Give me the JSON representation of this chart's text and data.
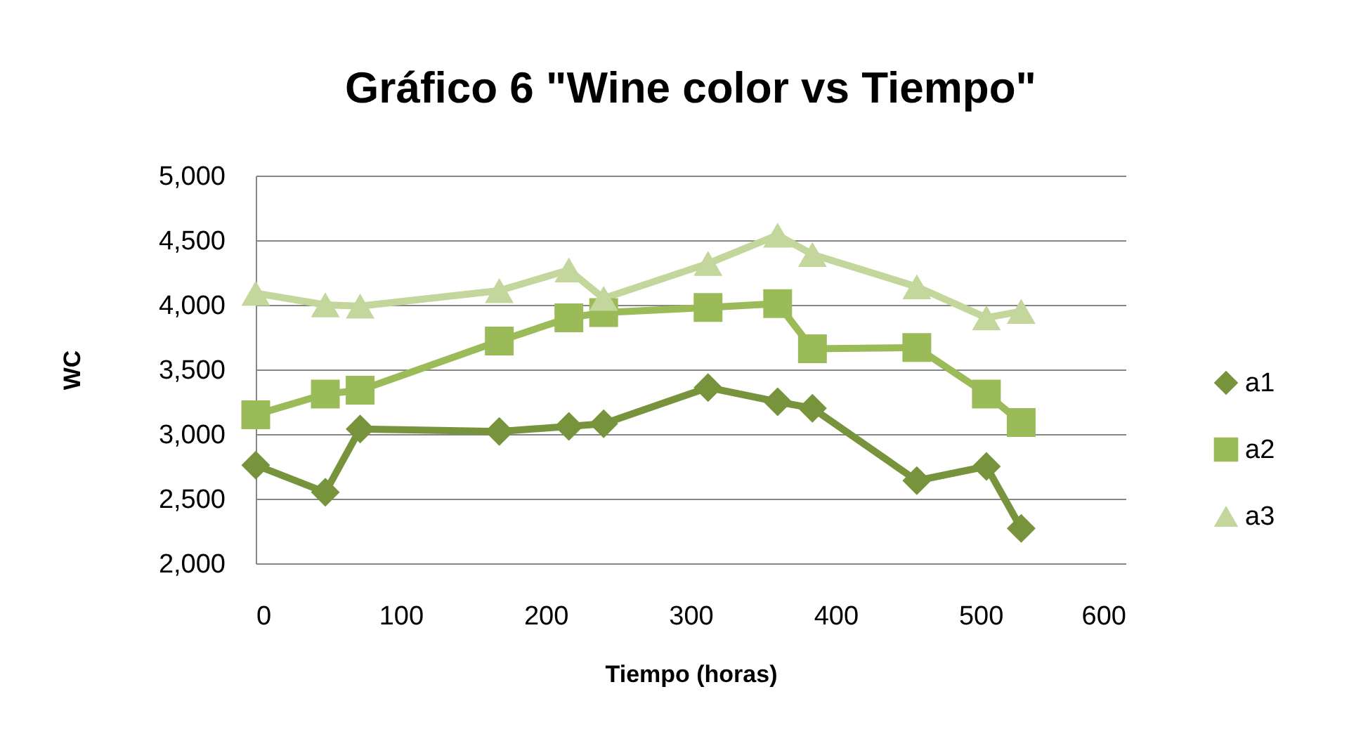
{
  "chart_data": {
    "type": "line",
    "title": "Gráfico 6 \"Wine color vs Tiempo\"",
    "xlabel": "Tiempo (horas)",
    "ylabel": "WC",
    "x": [
      0,
      48,
      72,
      168,
      216,
      240,
      312,
      360,
      384,
      456,
      504,
      528
    ],
    "series": [
      {
        "name": "a1",
        "color": "#77933c",
        "marker": "diamond",
        "values": [
          2760,
          2550,
          3040,
          3020,
          3060,
          3080,
          3360,
          3250,
          3200,
          2640,
          2750,
          2270
        ]
      },
      {
        "name": "a2",
        "color": "#9bbb59",
        "marker": "square",
        "values": [
          3150,
          3310,
          3340,
          3720,
          3900,
          3940,
          3980,
          4010,
          3660,
          3670,
          3310,
          3090
        ]
      },
      {
        "name": "a3",
        "color": "#c3d69b",
        "marker": "triangle",
        "values": [
          4090,
          4000,
          3990,
          4110,
          4270,
          4050,
          4320,
          4540,
          4390,
          4140,
          3900,
          3950
        ]
      }
    ],
    "xlim": [
      0,
      600
    ],
    "xticks": [
      0,
      100,
      200,
      300,
      400,
      500,
      600
    ],
    "ylim": [
      2000,
      5000
    ],
    "yticks": [
      {
        "value": 2000,
        "label": "2,000"
      },
      {
        "value": 2500,
        "label": "2,500"
      },
      {
        "value": 3000,
        "label": "3,000"
      },
      {
        "value": 3500,
        "label": "3,500"
      },
      {
        "value": 4000,
        "label": "4,000"
      },
      {
        "value": 4500,
        "label": "4,500"
      },
      {
        "value": 5000,
        "label": "5,000"
      }
    ],
    "grid": "y",
    "legend": "right",
    "line_style": "solid"
  }
}
